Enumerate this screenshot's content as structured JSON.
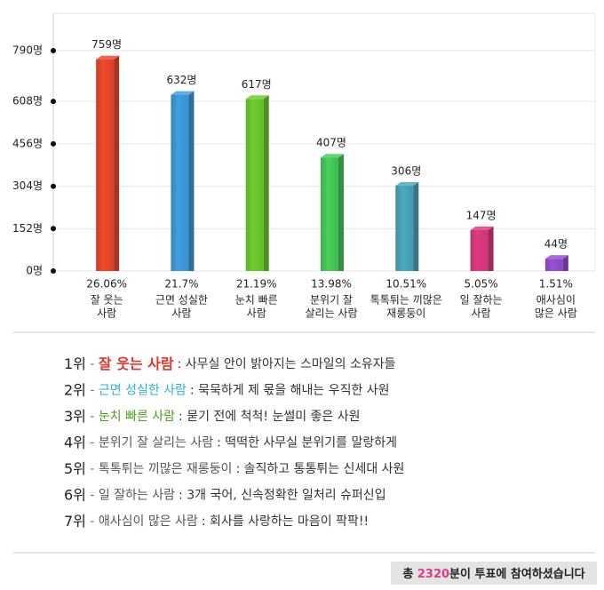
{
  "chart_data": {
    "type": "bar",
    "categories": [
      [
        "잘 웃는",
        "사람"
      ],
      [
        "근면 성실한",
        "사람"
      ],
      [
        "눈치 빠른",
        "사람"
      ],
      [
        "분위기 잘",
        "살리는 사람"
      ],
      [
        "톡톡튀는 끼많은",
        "재롱둥이"
      ],
      [
        "일 잘하는",
        "사람"
      ],
      [
        "애사심이",
        "많은 사람"
      ]
    ],
    "values": [
      759,
      632,
      617,
      407,
      306,
      147,
      44
    ],
    "value_labels": [
      "759명",
      "632명",
      "617명",
      "407명",
      "306명",
      "147명",
      "44명"
    ],
    "percent_labels": [
      "26.06%",
      "21.7%",
      "21.19%",
      "13.98%",
      "10.51%",
      "5.05%",
      "1.51%"
    ],
    "colors": [
      "#ef4a2b",
      "#3f9fe0",
      "#6ccf2e",
      "#46cf5a",
      "#4aa9c0",
      "#e23a82",
      "#9a4fd6"
    ],
    "label_colors": [
      "#e8322a",
      "#3a8fd8",
      "#4a9e1c",
      "#3a9a2c",
      "#2a8fa5",
      "#d6336c",
      "#8a3bc4"
    ],
    "ylim": [
      0,
      790
    ],
    "yticks": [
      {
        "value": 0,
        "label": "0명"
      },
      {
        "value": 152,
        "label": "152명"
      },
      {
        "value": 304,
        "label": "304명"
      },
      {
        "value": 456,
        "label": "456명"
      },
      {
        "value": 608,
        "label": "608명"
      },
      {
        "value": 790,
        "label": "790명"
      }
    ],
    "grid": true
  },
  "ranking": [
    {
      "rank": "1위",
      "name": "잘 웃는 사람",
      "desc": ": 사무실 안이 밝아지는 스마일의 소유자들",
      "color": "#e8322a"
    },
    {
      "rank": "2위",
      "name": "근면 성실한 사람",
      "desc": ": 묵묵하게 제 몫을 해내는 우직한 사원",
      "color": "#2ab3d6"
    },
    {
      "rank": "3위",
      "name": "눈치 빠른 사람",
      "desc": ": 묻기 전에 척척! 눈썰미 좋은 사원",
      "color": "#4a9e1c"
    },
    {
      "rank": "4위",
      "name": "분위기 잘 살리는 사람",
      "desc": ": 떡떡한 사무실 분위기를 말랑하게",
      "color": "#555555"
    },
    {
      "rank": "5위",
      "name": "톡톡튀는 끼많은 재롱둥이",
      "desc": ": 솔직하고 통통튀는 신세대 사원",
      "color": "#555555"
    },
    {
      "rank": "6위",
      "name": "일 잘하는 사람",
      "desc": ": 3개 국어, 신속정확한 일처리 슈퍼신입",
      "color": "#555555"
    },
    {
      "rank": "7위",
      "name": "애사심이 많은 사람",
      "desc": ": 회사를 사랑하는 마음이 팍팍!!",
      "color": "#555555"
    }
  ],
  "footer": {
    "prefix": "총",
    "count": 2320,
    "suffix": "분이 투표에 참여하셨습니다"
  }
}
